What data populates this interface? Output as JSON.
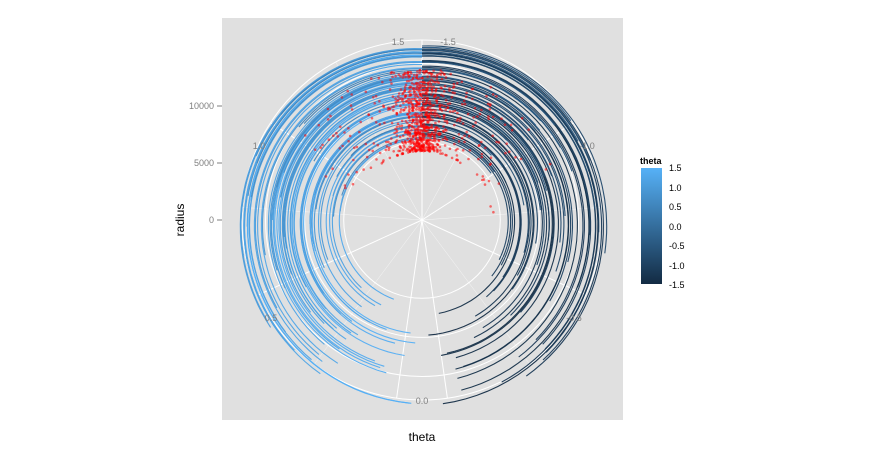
{
  "chart_data": {
    "type": "scatter",
    "coord": "polar",
    "xlabel": "theta",
    "ylabel": "radius",
    "theta_ticks": [
      "1.5",
      "-1.5",
      "1.0",
      "-1.0",
      "0.5",
      "-0.5",
      "0.0"
    ],
    "radius_ticks": [
      "10000",
      "5000",
      "0"
    ],
    "theta_range": [
      -1.5708,
      1.5708
    ],
    "radius_range": [
      -10000,
      13000
    ],
    "legend": {
      "title": "theta",
      "position": "right",
      "ticks": [
        "1.5",
        "1.0",
        "0.5",
        "0.0",
        "-0.5",
        "-1.0",
        "-1.5"
      ],
      "color_low": "#132b43",
      "color_high": "#56b1f7"
    },
    "point_color": "#ff0000",
    "panel_background": "#e0e0e0",
    "grid_color": "#ffffff",
    "grid": true
  }
}
